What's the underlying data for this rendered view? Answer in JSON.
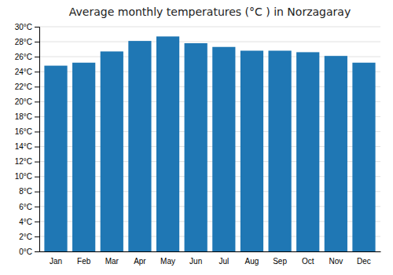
{
  "chart_data": {
    "type": "bar",
    "title": "Average monthly temperatures (°C ) in Norzagaray",
    "categories": [
      "Jan",
      "Feb",
      "Mar",
      "Apr",
      "May",
      "Jun",
      "Jul",
      "Aug",
      "Sep",
      "Oct",
      "Nov",
      "Dec"
    ],
    "values": [
      24.8,
      25.2,
      26.7,
      28.1,
      28.7,
      27.8,
      27.3,
      26.8,
      26.8,
      26.6,
      26.1,
      25.2
    ],
    "ylim": [
      0,
      30
    ],
    "yticks": [
      {
        "value": 0,
        "label": "0°C"
      },
      {
        "value": 2,
        "label": "2°C"
      },
      {
        "value": 4,
        "label": "4°C"
      },
      {
        "value": 6,
        "label": "6°C"
      },
      {
        "value": 8,
        "label": "8°C"
      },
      {
        "value": 10,
        "label": "10°C"
      },
      {
        "value": 12,
        "label": "12°C"
      },
      {
        "value": 14,
        "label": "14°C"
      },
      {
        "value": 16,
        "label": "16°C"
      },
      {
        "value": 18,
        "label": "18°C"
      },
      {
        "value": 20,
        "label": "20°C"
      },
      {
        "value": 22,
        "label": "22°C"
      },
      {
        "value": 24,
        "label": "24°C"
      },
      {
        "value": 26,
        "label": "26°C"
      },
      {
        "value": 28,
        "label": "28°C"
      },
      {
        "value": 30,
        "label": "30°C"
      }
    ],
    "grid": true
  }
}
